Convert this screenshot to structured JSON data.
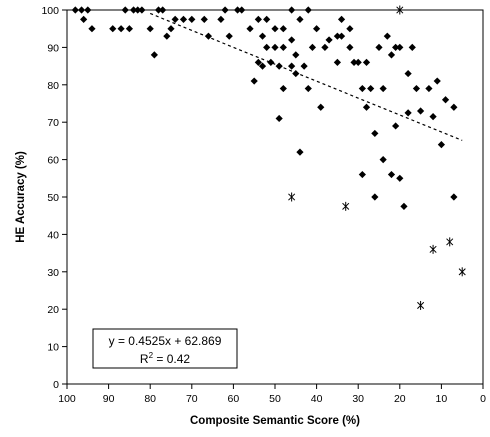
{
  "chart_data": {
    "type": "scatter",
    "title": "",
    "xlabel": "Composite Semantic Score (%)",
    "ylabel": "HE Accuracy (%)",
    "xlim": [
      100,
      0
    ],
    "ylim": [
      0,
      100
    ],
    "x_reversed": true,
    "xticks": [
      100,
      90,
      80,
      70,
      60,
      50,
      40,
      30,
      20,
      10,
      0
    ],
    "yticks": [
      0,
      10,
      20,
      30,
      40,
      50,
      60,
      70,
      80,
      90,
      100
    ],
    "grid": false,
    "legend": "none",
    "marker_color": "#000000",
    "series": [
      {
        "marker": "diamond",
        "points": [
          [
            98,
            100
          ],
          [
            96.5,
            100
          ],
          [
            95,
            100
          ],
          [
            96,
            97.5
          ],
          [
            94,
            95
          ],
          [
            89,
            95
          ],
          [
            87,
            95
          ],
          [
            85,
            95
          ],
          [
            86,
            100
          ],
          [
            84,
            100
          ],
          [
            83,
            100
          ],
          [
            82,
            100
          ],
          [
            80,
            95
          ],
          [
            78,
            100
          ],
          [
            77,
            100
          ],
          [
            79,
            88
          ],
          [
            75,
            95
          ],
          [
            74,
            97.5
          ],
          [
            72,
            97.5
          ],
          [
            70,
            97.5
          ],
          [
            76,
            93
          ],
          [
            67,
            97.5
          ],
          [
            63,
            97.5
          ],
          [
            62,
            100
          ],
          [
            59,
            100
          ],
          [
            58,
            100
          ],
          [
            66,
            93
          ],
          [
            61,
            93
          ],
          [
            56,
            95
          ],
          [
            54,
            97.5
          ],
          [
            52,
            97.5
          ],
          [
            53,
            93
          ],
          [
            50,
            95
          ],
          [
            52,
            90
          ],
          [
            48,
            95
          ],
          [
            46,
            100
          ],
          [
            44,
            97.5
          ],
          [
            50,
            90
          ],
          [
            48,
            90
          ],
          [
            46,
            92
          ],
          [
            45,
            88
          ],
          [
            42,
            100
          ],
          [
            40,
            95
          ],
          [
            37,
            92
          ],
          [
            35,
            93
          ],
          [
            38,
            90
          ],
          [
            41,
            90
          ],
          [
            43,
            85
          ],
          [
            55,
            81
          ],
          [
            54,
            86
          ],
          [
            53,
            85
          ],
          [
            51,
            86
          ],
          [
            49,
            85
          ],
          [
            46,
            85
          ],
          [
            45,
            83
          ],
          [
            42,
            79
          ],
          [
            39,
            74
          ],
          [
            48,
            79
          ],
          [
            49,
            71
          ],
          [
            44,
            62
          ],
          [
            34,
            97.5
          ],
          [
            32,
            95
          ],
          [
            34,
            93
          ],
          [
            32,
            90
          ],
          [
            30,
            86
          ],
          [
            31,
            86
          ],
          [
            28,
            86
          ],
          [
            35,
            86
          ],
          [
            29,
            79
          ],
          [
            28,
            74
          ],
          [
            27,
            79
          ],
          [
            24,
            79
          ],
          [
            22,
            88
          ],
          [
            25,
            90
          ],
          [
            23,
            93
          ],
          [
            21,
            90
          ],
          [
            20,
            90
          ],
          [
            17,
            90
          ],
          [
            18,
            83
          ],
          [
            16,
            79
          ],
          [
            13,
            79
          ],
          [
            18,
            72.5
          ],
          [
            15,
            73
          ],
          [
            12,
            71.5
          ],
          [
            11,
            81
          ],
          [
            9,
            76
          ],
          [
            7,
            74
          ],
          [
            26,
            67
          ],
          [
            24,
            60
          ],
          [
            22,
            56
          ],
          [
            21,
            69
          ],
          [
            20,
            55
          ],
          [
            29,
            56
          ],
          [
            26,
            50
          ],
          [
            19,
            47.5
          ],
          [
            10,
            64
          ],
          [
            7,
            50
          ]
        ]
      },
      {
        "marker": "asterisk",
        "points": [
          [
            20,
            100
          ],
          [
            46,
            50
          ],
          [
            33,
            47.5
          ],
          [
            15,
            21
          ],
          [
            12,
            36
          ],
          [
            8,
            38
          ],
          [
            5,
            30
          ]
        ]
      }
    ],
    "trendline": {
      "type": "linear",
      "slope": 0.4525,
      "intercept": 62.869,
      "x_range": [
        80,
        5
      ],
      "style": "dashed"
    },
    "annotation": {
      "equation": "y = 0.4525x + 62.869",
      "r2_prefix": "R",
      "r2_sup": "2",
      "r2_suffix": " = 0.42"
    }
  }
}
